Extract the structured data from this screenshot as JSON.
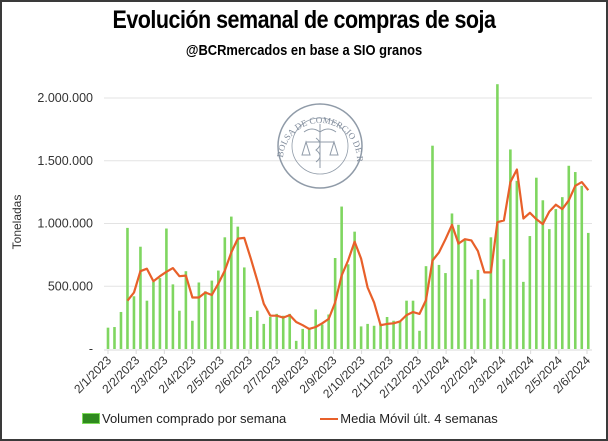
{
  "header": {
    "title": "Evolución semanal de compras de soja",
    "subtitle": "@BCRmercados en base a SIO granos"
  },
  "watermark": {
    "text": "BOLSA DE COMERCIO DE ROSARIO"
  },
  "colors": {
    "bars": "#7fd660",
    "line": "#e8602a",
    "grid": "#e3e3e3",
    "legend_bar": "#2f8a1e"
  },
  "chart_data": {
    "type": "bar",
    "title": "Evolución semanal de compras de soja",
    "subtitle": "@BCRmercados en base a SIO granos",
    "xlabel": "",
    "ylabel": "Toneladas",
    "ylim": [
      0,
      2000000
    ],
    "yticks": [
      0,
      500000,
      1000000,
      1500000,
      2000000
    ],
    "ytick_labels": [
      "-",
      "500.000",
      "1.000.000",
      "1.500.000",
      "2.000.000"
    ],
    "xtick_labels": [
      "2/1/2023",
      "2/2/2023",
      "2/3/2023",
      "2/4/2023",
      "2/5/2023",
      "2/6/2023",
      "2/7/2023",
      "2/8/2023",
      "2/9/2023",
      "2/10/2023",
      "2/11/2023",
      "2/12/2023",
      "2/1/2024",
      "2/2/2024",
      "2/3/2024",
      "2/4/2024",
      "2/5/2024",
      "2/6/2024"
    ],
    "grid": true,
    "legend_position": "bottom",
    "series": [
      {
        "name": "Volumen comprado por semana",
        "type": "bar",
        "values": [
          170000,
          175000,
          295000,
          965000,
          420000,
          815000,
          385000,
          535000,
          565000,
          960000,
          515000,
          305000,
          620000,
          225000,
          530000,
          460000,
          545000,
          625000,
          890000,
          1055000,
          975000,
          650000,
          255000,
          305000,
          200000,
          255000,
          280000,
          265000,
          280000,
          65000,
          160000,
          160000,
          315000,
          195000,
          275000,
          725000,
          1135000,
          675000,
          935000,
          180000,
          200000,
          185000,
          200000,
          255000,
          225000,
          225000,
          385000,
          385000,
          145000,
          660000,
          1620000,
          670000,
          605000,
          1080000,
          990000,
          865000,
          555000,
          630000,
          400000,
          890000,
          2110000,
          715000,
          1590000,
          1340000,
          535000,
          900000,
          1365000,
          1185000,
          955000,
          1115000,
          1210000,
          1460000,
          1410000,
          1300000,
          925000
        ]
      },
      {
        "name": "Media Móvil últ. 4 semanas",
        "type": "line",
        "start_index": 3,
        "values": [
          385000,
          450000,
          620000,
          640000,
          540000,
          580000,
          615000,
          645000,
          580000,
          585000,
          410000,
          410000,
          450000,
          430000,
          520000,
          625000,
          770000,
          880000,
          885000,
          720000,
          545000,
          360000,
          265000,
          265000,
          250000,
          270000,
          215000,
          190000,
          160000,
          175000,
          205000,
          240000,
          370000,
          585000,
          705000,
          855000,
          720000,
          490000,
          370000,
          190000,
          200000,
          205000,
          220000,
          270000,
          295000,
          280000,
          390000,
          705000,
          770000,
          875000,
          990000,
          840000,
          875000,
          865000,
          780000,
          610000,
          610000,
          1010000,
          1025000,
          1330000,
          1430000,
          1040000,
          1085000,
          1035000,
          995000,
          1095000,
          1150000,
          1115000,
          1185000,
          1300000,
          1330000,
          1265000
        ]
      }
    ]
  },
  "legend": {
    "items": [
      {
        "label": "Volumen comprado por semana"
      },
      {
        "label": "Media Móvil últ. 4 semanas"
      }
    ]
  }
}
